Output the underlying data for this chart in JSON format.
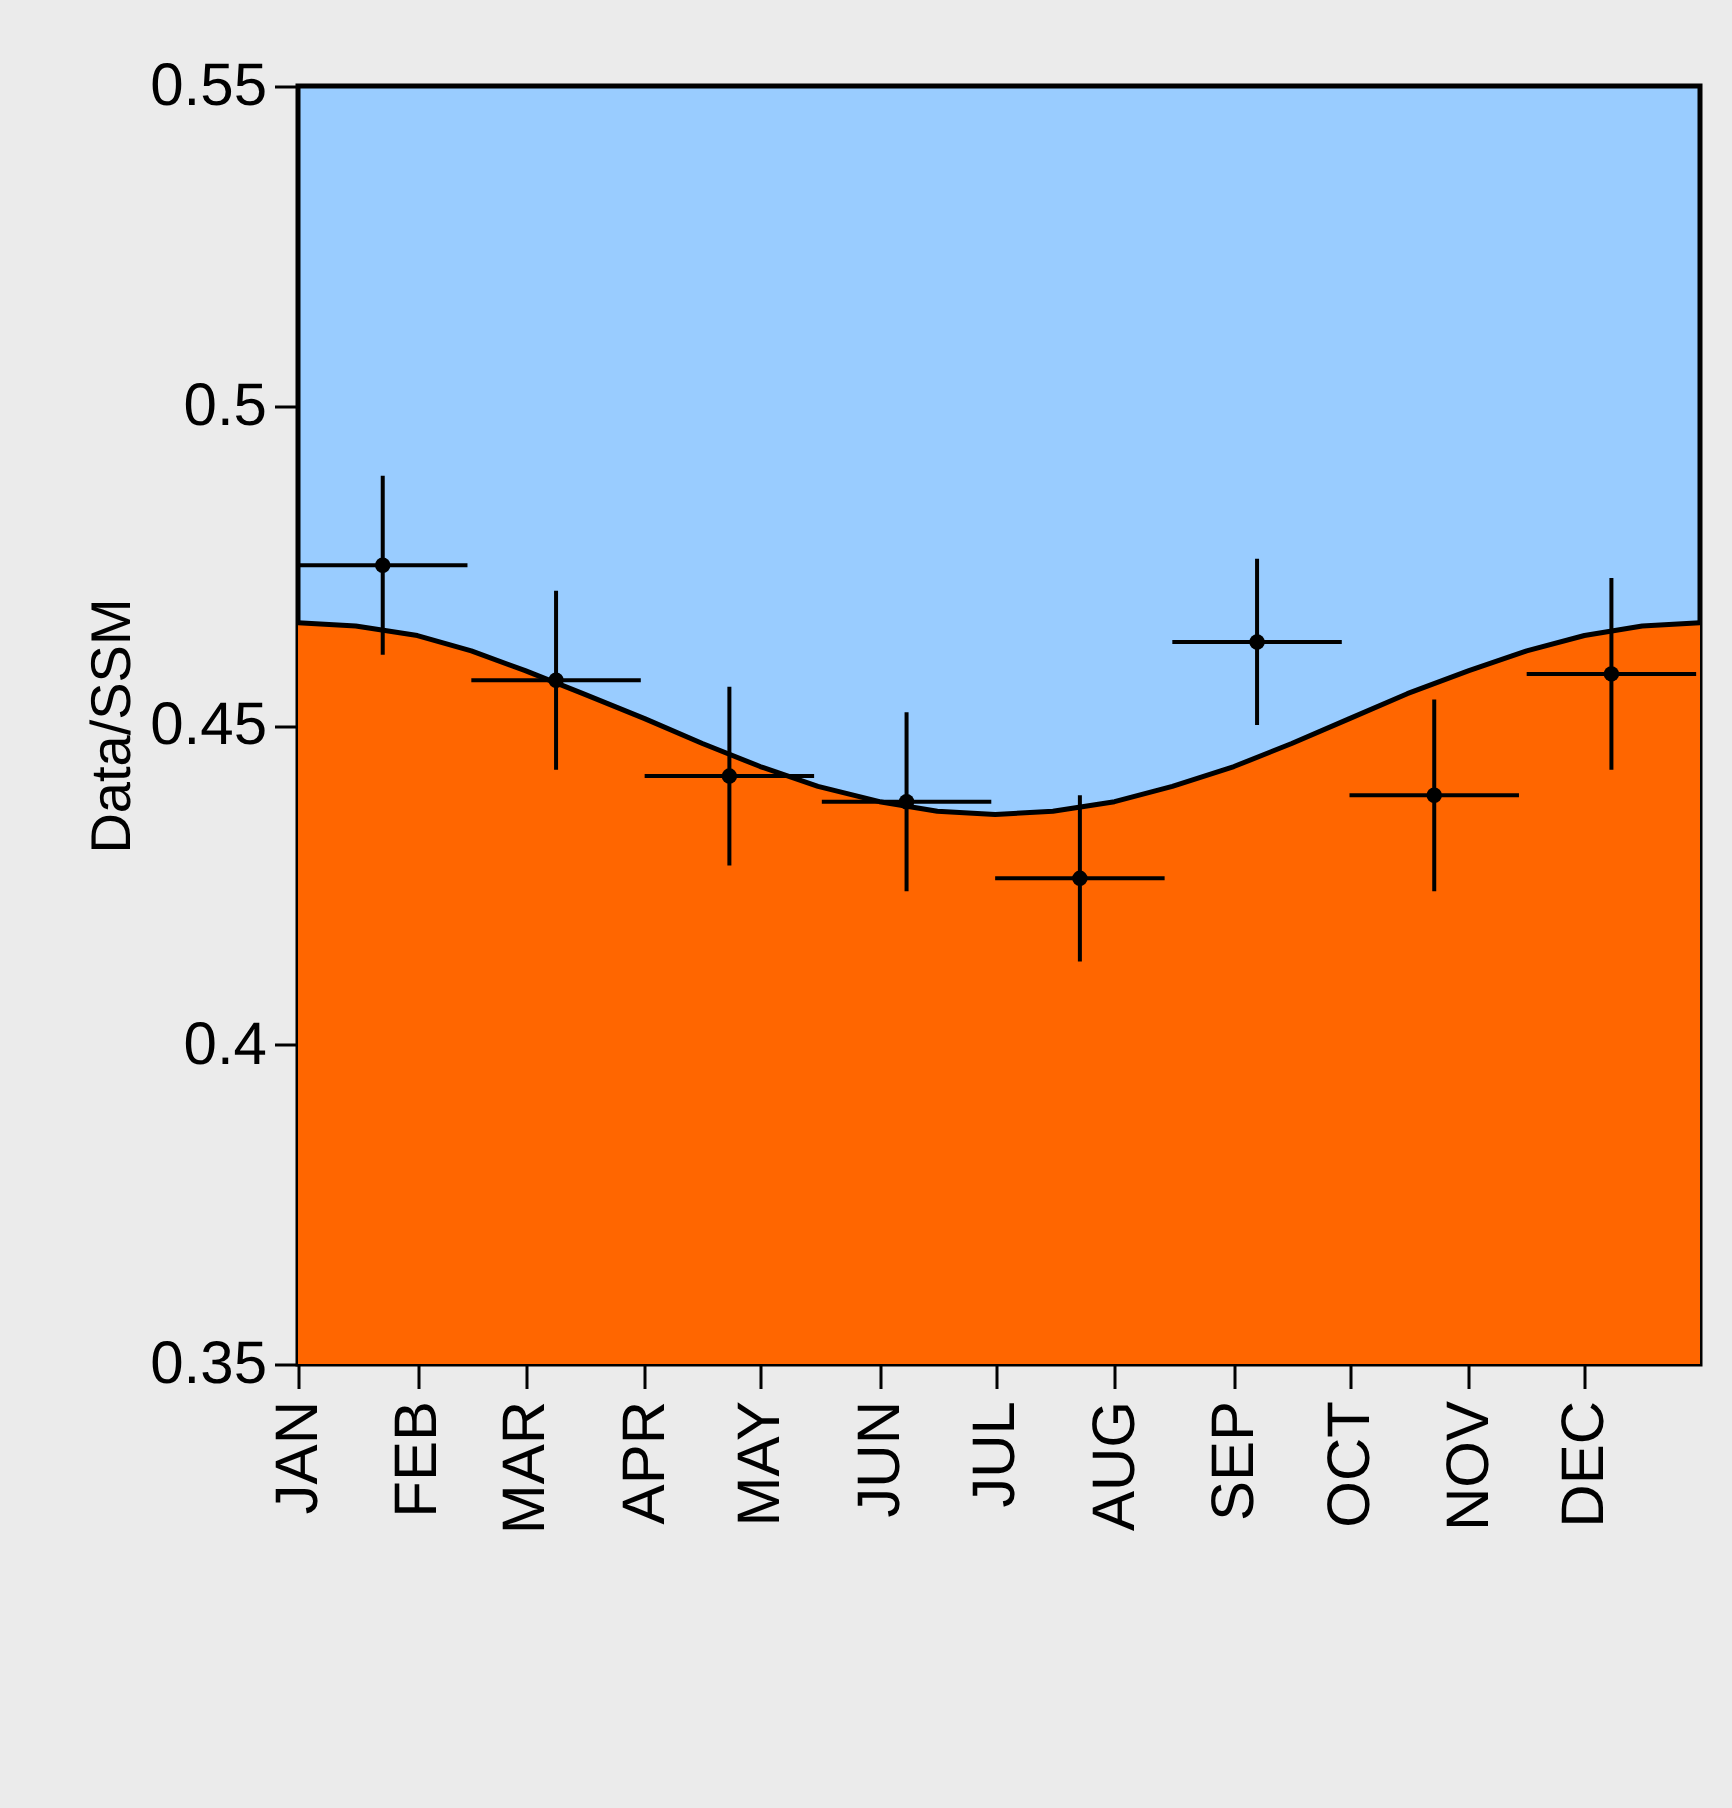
{
  "chart_data": {
    "type": "scatter",
    "ylabel": "Data/SSM",
    "xlim": [
      "--01-01",
      "--12-31"
    ],
    "xticks": [
      {
        "value": "--01-01",
        "label": "JAN"
      },
      {
        "value": "--02-01",
        "label": "FEB"
      },
      {
        "value": "--03-01",
        "label": "MAR"
      },
      {
        "value": "--04-01",
        "label": "APR"
      },
      {
        "value": "--05-01",
        "label": "MAY"
      },
      {
        "value": "--06-01",
        "label": "JUN"
      },
      {
        "value": "--07-01",
        "label": "JUL"
      },
      {
        "value": "--08-01",
        "label": "AUG"
      },
      {
        "value": "--09-01",
        "label": "SEP"
      },
      {
        "value": "--10-01",
        "label": "OCT"
      },
      {
        "value": "--11-01",
        "label": "NOV"
      },
      {
        "value": "--12-01",
        "label": "DEC"
      }
    ],
    "ylim": [
      0.35,
      0.55
    ],
    "yticks": [
      0.35,
      0.4,
      0.45,
      0.5,
      0.55
    ],
    "grid": false,
    "series": [
      {
        "type": "area",
        "color": "#ff6600",
        "x": [
          "--01-01",
          "--01-16",
          "--02-01",
          "--02-15",
          "--03-01",
          "--03-16",
          "--04-01",
          "--04-16",
          "--05-01",
          "--05-16",
          "--06-01",
          "--06-16",
          "--07-01",
          "--07-16",
          "--08-01",
          "--08-16",
          "--09-01",
          "--09-16",
          "--10-01",
          "--10-16",
          "--11-01",
          "--11-16",
          "--12-01",
          "--12-16",
          "--12-31"
        ],
        "values": [
          0.466,
          0.4655,
          0.464,
          0.4616,
          0.4585,
          0.4549,
          0.451,
          0.4471,
          0.4435,
          0.4404,
          0.438,
          0.4365,
          0.436,
          0.4365,
          0.438,
          0.4404,
          0.4435,
          0.4471,
          0.451,
          0.4549,
          0.4585,
          0.4616,
          0.464,
          0.4655,
          0.466
        ]
      },
      {
        "color": "#000000",
        "marker": "circle",
        "x": [
          "--01-23",
          "--03-09",
          "--04-23",
          "--06-08",
          "--07-23",
          "--09-07",
          "--10-23",
          "--12-08"
        ],
        "values": [
          0.475,
          0.457,
          0.442,
          0.438,
          0.426,
          0.463,
          0.439,
          0.458
        ],
        "errors": [
          0.014,
          0.014,
          0.014,
          0.014,
          0.013,
          0.013,
          0.015,
          0.015
        ],
        "xerrors": [
          22,
          22,
          22,
          22,
          22,
          22,
          22,
          22
        ]
      }
    ]
  }
}
